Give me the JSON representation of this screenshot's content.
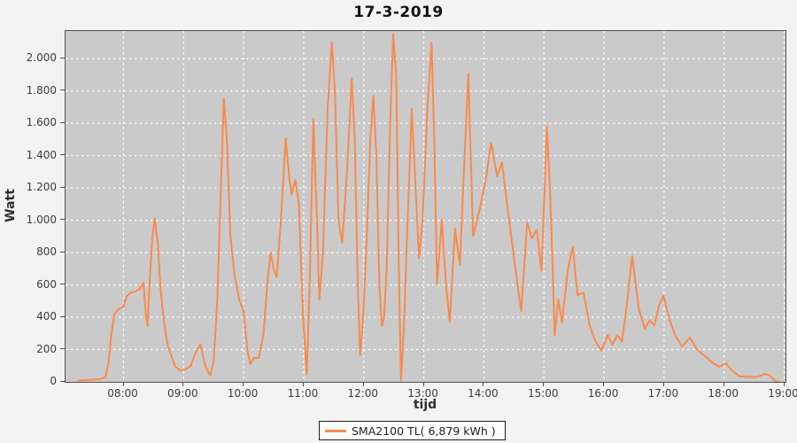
{
  "title": "17-3-2019",
  "legend": {
    "label": "SMA2100 TL( 6,879 kWh )"
  },
  "colors": {
    "series": "#f98a4c",
    "plot_background": "#cacaca",
    "outer_background": "#f3f3f3",
    "gridline": "#ffffff",
    "axis": "#4f4f4f"
  },
  "chart_data": {
    "type": "line",
    "title": "17-3-2019",
    "xlabel": "tijd",
    "ylabel": "Watt",
    "grid": "white dashed on gray plot background",
    "legend_position": "bottom-center",
    "x_axis": {
      "title": "tijd",
      "range_hours": [
        7.03,
        19.02
      ],
      "ticks": [
        {
          "v": 8,
          "label": "08:00"
        },
        {
          "v": 9,
          "label": "09:00"
        },
        {
          "v": 10,
          "label": "10:00"
        },
        {
          "v": 11,
          "label": "11:00"
        },
        {
          "v": 12,
          "label": "12:00"
        },
        {
          "v": 13,
          "label": "13:00"
        },
        {
          "v": 14,
          "label": "14:00"
        },
        {
          "v": 15,
          "label": "15:00"
        },
        {
          "v": 16,
          "label": "16:00"
        },
        {
          "v": 17,
          "label": "17:00"
        },
        {
          "v": 18,
          "label": "18:00"
        },
        {
          "v": 19,
          "label": "19:00"
        }
      ]
    },
    "y_axis": {
      "title": "Watt",
      "range": [
        0,
        2172
      ],
      "ticks": [
        {
          "v": 0,
          "label": "0"
        },
        {
          "v": 200,
          "label": "200"
        },
        {
          "v": 400,
          "label": "400"
        },
        {
          "v": 600,
          "label": "600"
        },
        {
          "v": 800,
          "label": "800"
        },
        {
          "v": 1000,
          "label": "1.000"
        },
        {
          "v": 1200,
          "label": "1.200"
        },
        {
          "v": 1400,
          "label": "1.400"
        },
        {
          "v": 1600,
          "label": "1.600"
        },
        {
          "v": 1800,
          "label": "1.800"
        },
        {
          "v": 2000,
          "label": "2.000"
        }
      ]
    },
    "series": [
      {
        "name": "SMA2100 TL",
        "total_energy": "6,879 kWh",
        "color": "#f98a4c",
        "points": [
          [
            7.25,
            8
          ],
          [
            7.45,
            12
          ],
          [
            7.62,
            18
          ],
          [
            7.7,
            30
          ],
          [
            7.75,
            120
          ],
          [
            7.8,
            300
          ],
          [
            7.85,
            420
          ],
          [
            7.92,
            450
          ],
          [
            8.0,
            465
          ],
          [
            8.05,
            530
          ],
          [
            8.12,
            550
          ],
          [
            8.2,
            560
          ],
          [
            8.27,
            575
          ],
          [
            8.3,
            595
          ],
          [
            8.33,
            613
          ],
          [
            8.37,
            430
          ],
          [
            8.4,
            345
          ],
          [
            8.44,
            650
          ],
          [
            8.48,
            900
          ],
          [
            8.52,
            1010
          ],
          [
            8.57,
            860
          ],
          [
            8.62,
            560
          ],
          [
            8.68,
            350
          ],
          [
            8.74,
            220
          ],
          [
            8.8,
            155
          ],
          [
            8.86,
            95
          ],
          [
            8.95,
            70
          ],
          [
            9.02,
            75
          ],
          [
            9.12,
            100
          ],
          [
            9.2,
            180
          ],
          [
            9.28,
            230
          ],
          [
            9.36,
            100
          ],
          [
            9.44,
            40
          ],
          [
            9.5,
            120
          ],
          [
            9.56,
            500
          ],
          [
            9.62,
            1200
          ],
          [
            9.67,
            1753
          ],
          [
            9.72,
            1500
          ],
          [
            9.78,
            900
          ],
          [
            9.85,
            658
          ],
          [
            9.93,
            504
          ],
          [
            10.0,
            438
          ],
          [
            10.06,
            200
          ],
          [
            10.11,
            110
          ],
          [
            10.17,
            148
          ],
          [
            10.25,
            148
          ],
          [
            10.33,
            290
          ],
          [
            10.4,
            640
          ],
          [
            10.45,
            800
          ],
          [
            10.5,
            700
          ],
          [
            10.55,
            648
          ],
          [
            10.62,
            1000
          ],
          [
            10.7,
            1507
          ],
          [
            10.76,
            1260
          ],
          [
            10.8,
            1160
          ],
          [
            10.86,
            1250
          ],
          [
            10.92,
            1100
          ],
          [
            10.99,
            400
          ],
          [
            11.05,
            45
          ],
          [
            11.1,
            600
          ],
          [
            11.16,
            1630
          ],
          [
            11.22,
            1000
          ],
          [
            11.26,
            510
          ],
          [
            11.32,
            800
          ],
          [
            11.4,
            1700
          ],
          [
            11.47,
            2100
          ],
          [
            11.52,
            1800
          ],
          [
            11.58,
            1000
          ],
          [
            11.64,
            860
          ],
          [
            11.72,
            1300
          ],
          [
            11.8,
            1880
          ],
          [
            11.85,
            1500
          ],
          [
            11.9,
            600
          ],
          [
            11.94,
            165
          ],
          [
            11.99,
            400
          ],
          [
            12.05,
            900
          ],
          [
            12.11,
            1500
          ],
          [
            12.16,
            1770
          ],
          [
            12.21,
            1400
          ],
          [
            12.26,
            600
          ],
          [
            12.3,
            345
          ],
          [
            12.34,
            400
          ],
          [
            12.38,
            700
          ],
          [
            12.44,
            1600
          ],
          [
            12.49,
            2153
          ],
          [
            12.54,
            1900
          ],
          [
            12.58,
            800
          ],
          [
            12.62,
            10
          ],
          [
            12.67,
            350
          ],
          [
            12.73,
            1000
          ],
          [
            12.8,
            1690
          ],
          [
            12.85,
            1300
          ],
          [
            12.92,
            767
          ],
          [
            12.98,
            1000
          ],
          [
            13.06,
            1700
          ],
          [
            13.13,
            2100
          ],
          [
            13.18,
            1400
          ],
          [
            13.22,
            603
          ],
          [
            13.3,
            1003
          ],
          [
            13.37,
            600
          ],
          [
            13.43,
            373
          ],
          [
            13.52,
            948
          ],
          [
            13.6,
            723
          ],
          [
            13.68,
            1400
          ],
          [
            13.74,
            1907
          ],
          [
            13.82,
            904
          ],
          [
            13.92,
            1050
          ],
          [
            14.03,
            1250
          ],
          [
            14.12,
            1480
          ],
          [
            14.22,
            1271
          ],
          [
            14.3,
            1359
          ],
          [
            14.42,
            1000
          ],
          [
            14.52,
            712
          ],
          [
            14.62,
            438
          ],
          [
            14.72,
            986
          ],
          [
            14.8,
            888
          ],
          [
            14.88,
            942
          ],
          [
            14.96,
            685
          ],
          [
            15.05,
            1580
          ],
          [
            15.1,
            1200
          ],
          [
            15.14,
            767
          ],
          [
            15.18,
            290
          ],
          [
            15.24,
            510
          ],
          [
            15.3,
            367
          ],
          [
            15.4,
            700
          ],
          [
            15.48,
            838
          ],
          [
            15.56,
            537
          ],
          [
            15.66,
            551
          ],
          [
            15.76,
            350
          ],
          [
            15.85,
            257
          ],
          [
            15.96,
            192
          ],
          [
            16.06,
            290
          ],
          [
            16.14,
            230
          ],
          [
            16.22,
            290
          ],
          [
            16.3,
            250
          ],
          [
            16.38,
            480
          ],
          [
            16.47,
            778
          ],
          [
            16.58,
            450
          ],
          [
            16.68,
            330
          ],
          [
            16.76,
            380
          ],
          [
            16.84,
            350
          ],
          [
            16.92,
            480
          ],
          [
            16.99,
            531
          ],
          [
            17.08,
            400
          ],
          [
            17.18,
            290
          ],
          [
            17.3,
            219
          ],
          [
            17.43,
            274
          ],
          [
            17.55,
            200
          ],
          [
            17.68,
            160
          ],
          [
            17.8,
            120
          ],
          [
            17.92,
            93
          ],
          [
            18.03,
            115
          ],
          [
            18.13,
            70
          ],
          [
            18.25,
            35
          ],
          [
            18.4,
            30
          ],
          [
            18.55,
            30
          ],
          [
            18.68,
            48
          ],
          [
            18.76,
            40
          ],
          [
            18.85,
            5
          ],
          [
            18.92,
            0
          ]
        ]
      }
    ]
  }
}
